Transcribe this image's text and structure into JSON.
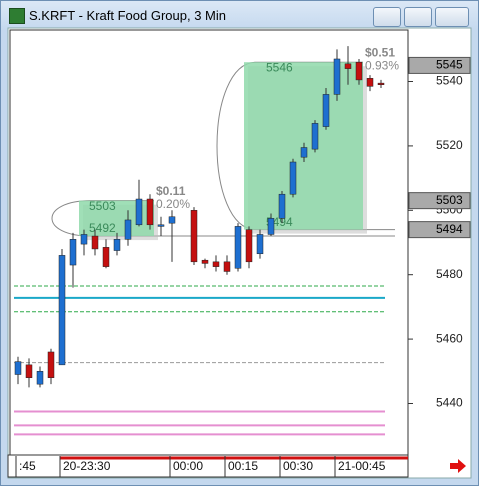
{
  "window_title": "S.KRFT - Kraft Food Group, 3 Min",
  "chart_data": {
    "type": "candlestick",
    "categories": [
      ":45",
      null,
      null,
      null,
      "20-23:30",
      null,
      null,
      null,
      null,
      null,
      null,
      null,
      null,
      null,
      "00:00",
      null,
      null,
      null,
      null,
      "00:15",
      null,
      null,
      null,
      null,
      "00:30",
      null,
      null,
      null,
      null,
      "21-00:45",
      null,
      null,
      null,
      null
    ],
    "open": [
      5449,
      5452,
      5446,
      5456,
      5452,
      5483,
      5489.5,
      5492,
      5488.5,
      5487.5,
      5491,
      5495.5,
      5503.5,
      5495,
      5496,
      null,
      5500,
      5484.5,
      5484,
      5484,
      5482,
      5494,
      5486.5,
      5492.5,
      5497.5,
      5505,
      5516.5,
      5519,
      5526,
      5536,
      5545.5,
      5546,
      5541,
      5539.5
    ],
    "high": [
      5454.5,
      5454,
      5451.5,
      5457,
      5488,
      5493,
      5494,
      5494,
      5491,
      5493,
      5500,
      5509.5,
      5505,
      5498,
      5500,
      null,
      5501,
      5485,
      5486,
      5486,
      5496,
      5495,
      5494,
      5499,
      5506,
      5516,
      5521,
      5528,
      5538,
      5550,
      5551,
      5547,
      5542,
      5540.5
    ],
    "low": [
      5446,
      5445,
      5445,
      5446,
      5452,
      5476,
      5486,
      5486,
      5482,
      5486,
      5489,
      5495,
      5494,
      5492,
      5484,
      null,
      5483,
      5482,
      5481,
      5480,
      5481,
      5482,
      5485,
      5492,
      5496,
      5504,
      5515,
      5518,
      5525,
      5534,
      5539,
      5539,
      5537,
      5538
    ],
    "close": [
      5453,
      5448,
      5450,
      5448,
      5486,
      5491,
      5492.5,
      5488,
      5482.5,
      5491,
      5497,
      5503.5,
      5495.5,
      5495.5,
      5498,
      null,
      5484,
      5483.5,
      5482.5,
      5481,
      5495,
      5484,
      5492.5,
      5497.5,
      5505,
      5515,
      5519.5,
      5527,
      5536,
      5547,
      5544,
      5540.5,
      5538.5,
      5539
    ],
    "up_color": "#1e6fd0",
    "down_color": "#c41010",
    "ylim": [
      5424,
      5556
    ],
    "yticks": [
      5440,
      5460,
      5480,
      5500,
      5520,
      5540
    ],
    "price_markers": [
      5545,
      5503,
      5494
    ],
    "levels": [
      {
        "value": 5476.5,
        "color": "#2eaa4a",
        "dashed": true
      },
      {
        "value": 5472.8,
        "color": "#1aa8c8",
        "dashed": false
      },
      {
        "value": 5468.5,
        "color": "#2eaa4a",
        "dashed": true
      },
      {
        "value": 5452.7,
        "color": "#999999",
        "dashed": true
      },
      {
        "value": 5437.5,
        "color": "#e58fd0",
        "dashed": false
      },
      {
        "value": 5433.2,
        "color": "#e58fd0",
        "dashed": false
      },
      {
        "value": 5430.4,
        "color": "#e58fd0",
        "dashed": false
      }
    ],
    "zones": [
      {
        "high": 5503,
        "low": 5492,
        "high_label": "5503",
        "low_label": "5492",
        "change": "$0.11",
        "change_pct": "0.20%"
      },
      {
        "high": 5546,
        "low": 5494,
        "high_label": "5546",
        "low_label": "5494",
        "change": "$0.51",
        "change_pct": "0.93%"
      }
    ]
  }
}
